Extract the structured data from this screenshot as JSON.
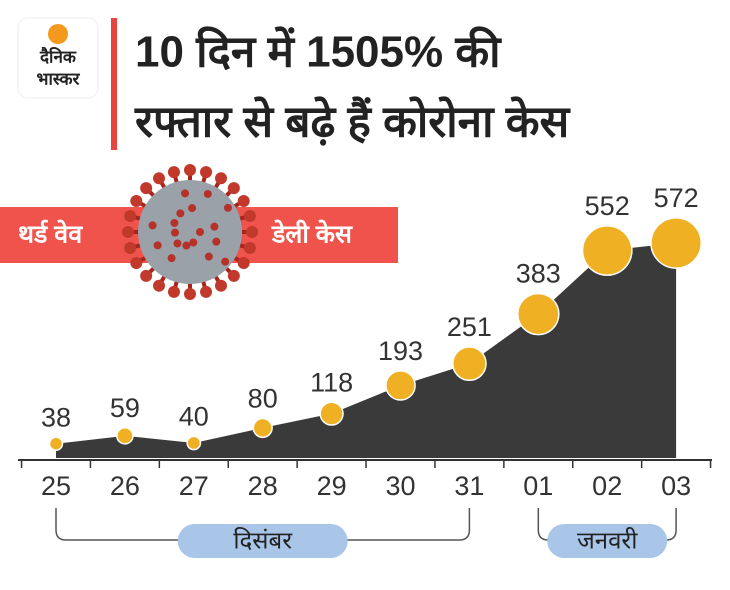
{
  "logo": [
    "दैनिक",
    "भास्कर"
  ],
  "title": [
    "10 दिन में 1505% की",
    "रफ्तार से बढ़े हैं कोरोना केस"
  ],
  "banner": {
    "left": "थर्ड वेव",
    "right": "डेली केस"
  },
  "chart_data": {
    "type": "area",
    "categories": [
      "25",
      "26",
      "27",
      "28",
      "29",
      "30",
      "31",
      "01",
      "02",
      "03"
    ],
    "values": [
      38,
      59,
      40,
      80,
      118,
      193,
      251,
      383,
      552,
      572
    ],
    "color": "#3a3a3a",
    "marker_color": "#f0b023",
    "x_groups": [
      "दिसंबर",
      "जनवरी"
    ]
  }
}
